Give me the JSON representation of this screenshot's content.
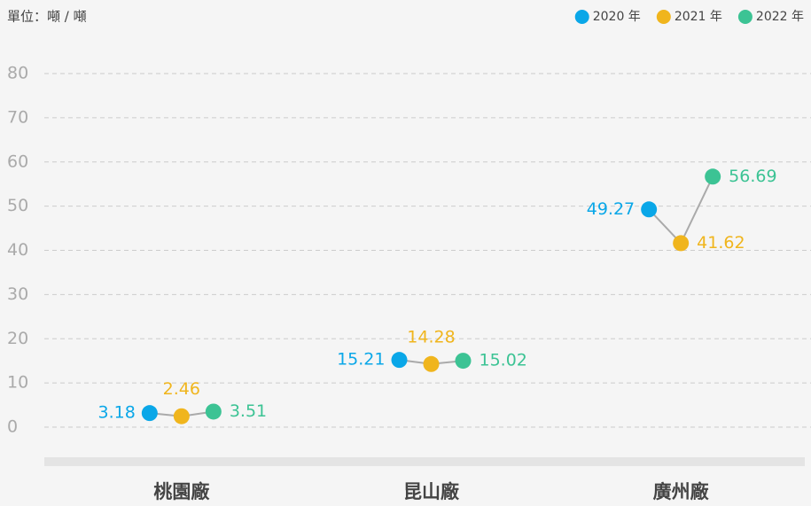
{
  "chart_data": {
    "type": "dot",
    "y_label": "單位：噸 / 噸",
    "categories": [
      "桃園廠",
      "昆山廠",
      "廣州廠"
    ],
    "series": [
      {
        "name": "2020 年",
        "color": "#0aa7e8",
        "values": [
          3.18,
          15.21,
          49.27
        ]
      },
      {
        "name": "2021 年",
        "color": "#f0b51d",
        "values": [
          2.46,
          14.28,
          41.62
        ]
      },
      {
        "name": "2022 年",
        "color": "#3cc394",
        "values": [
          3.51,
          15.02,
          56.69
        ]
      }
    ],
    "ylim": [
      0,
      80
    ],
    "yticks": [
      0,
      10,
      20,
      30,
      40,
      50,
      60,
      70,
      80
    ],
    "grid": true,
    "legend": "top-right"
  }
}
